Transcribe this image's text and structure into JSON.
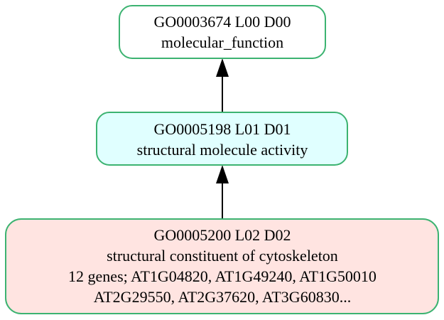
{
  "colors": {
    "border": "#3cb371",
    "root_fill": "#ffffff",
    "mid_fill": "#e0ffff",
    "leaf_fill": "#ffe4e1",
    "arrow": "#000000"
  },
  "nodes": {
    "root": {
      "line1": "GO0003674 L00 D00",
      "line2": "molecular_function"
    },
    "mid": {
      "line1": "GO0005198 L01 D01",
      "line2": "structural molecule activity"
    },
    "leaf": {
      "line1": "GO0005200 L02 D02",
      "line2": "structural constituent of cytoskeleton",
      "line3": "12 genes; AT1G04820, AT1G49240, AT1G50010",
      "line4": "AT2G29550, AT2G37620, AT3G60830..."
    }
  },
  "edges": [
    {
      "from": "mid",
      "to": "root"
    },
    {
      "from": "leaf",
      "to": "mid"
    }
  ]
}
